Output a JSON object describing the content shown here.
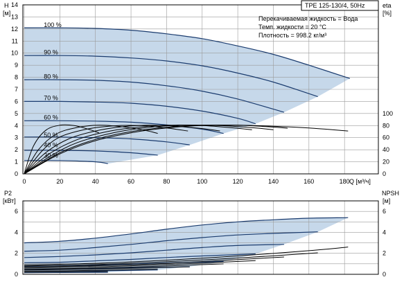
{
  "header": {
    "title": "TPE 125-130/4, 50Hz",
    "fluid_line": "Перекачиваемая жидкость = Вода",
    "temp_line": "Темп. жидкости = 20 °C",
    "density_line": "Плотность = 998.2 кг/м³"
  },
  "colors": {
    "curve": "#1a3b6e",
    "fill": "#c6d8ea",
    "grid": "#9a9a9a",
    "black_curve": "#000000"
  },
  "chart_data": [
    {
      "type": "line",
      "panel": "head",
      "ylabel_top": "H",
      "ylabel_unit": "[м]",
      "right_label_top": "eta",
      "right_label_unit": "[%]",
      "xlabel": "Q [м³/ч]",
      "xlim": [
        0,
        185
      ],
      "ylim": [
        0,
        14
      ],
      "eta_lim": [
        0,
        100
      ],
      "x_ticks": [
        0,
        20,
        40,
        60,
        80,
        100,
        120,
        140,
        160,
        180
      ],
      "y_ticks": [
        0,
        1,
        2,
        3,
        4,
        5,
        6,
        7,
        8,
        9,
        10,
        11,
        12,
        13,
        14
      ],
      "eta_ticks": [
        0,
        20,
        40,
        60,
        80,
        100
      ],
      "grid": true,
      "speed_labels": [
        "100 %",
        "90 %",
        "80 %",
        "70 %",
        "60 %",
        "50 %",
        "40 %",
        "30 %"
      ],
      "speed_label_positions": [
        {
          "x": 11,
          "y": 12.15
        },
        {
          "x": 11,
          "y": 9.9
        },
        {
          "x": 11,
          "y": 7.9
        },
        {
          "x": 11,
          "y": 6.1
        },
        {
          "x": 11,
          "y": 4.5
        },
        {
          "x": 11,
          "y": 3.05
        },
        {
          "x": 11,
          "y": 2.2
        },
        {
          "x": 11,
          "y": 1.35
        }
      ],
      "qh_series": [
        {
          "name": "100 %",
          "x": [
            0,
            20,
            40,
            60,
            80,
            100,
            120,
            140,
            160,
            183
          ],
          "y": [
            12.1,
            12.1,
            12.05,
            11.9,
            11.6,
            11.2,
            10.6,
            9.9,
            9.0,
            7.9
          ]
        },
        {
          "name": "90 %",
          "x": [
            0,
            20,
            40,
            60,
            80,
            100,
            120,
            140,
            165
          ],
          "y": [
            9.8,
            9.8,
            9.75,
            9.6,
            9.35,
            8.95,
            8.35,
            7.6,
            6.4
          ]
        },
        {
          "name": "80 %",
          "x": [
            0,
            20,
            40,
            60,
            80,
            100,
            120,
            146
          ],
          "y": [
            7.8,
            7.8,
            7.75,
            7.6,
            7.3,
            6.85,
            6.2,
            5.1
          ]
        },
        {
          "name": "70 %",
          "x": [
            0,
            20,
            40,
            60,
            80,
            100,
            120,
            130
          ],
          "y": [
            6.0,
            6.0,
            5.95,
            5.85,
            5.6,
            5.2,
            4.6,
            4.15
          ]
        },
        {
          "name": "60 %",
          "x": [
            0,
            20,
            40,
            60,
            80,
            100,
            112
          ],
          "y": [
            4.4,
            4.4,
            4.37,
            4.28,
            4.05,
            3.7,
            3.35
          ]
        },
        {
          "name": "50 %",
          "x": [
            0,
            20,
            40,
            60,
            80,
            93
          ],
          "y": [
            3.05,
            3.05,
            3.0,
            2.9,
            2.65,
            2.4
          ]
        },
        {
          "name": "40 %",
          "x": [
            0,
            20,
            40,
            60,
            75
          ],
          "y": [
            1.95,
            1.95,
            1.9,
            1.75,
            1.55
          ]
        },
        {
          "name": "30 %",
          "x": [
            0,
            20,
            40,
            47
          ],
          "y": [
            1.1,
            1.1,
            1.0,
            0.85
          ]
        }
      ],
      "eta_series": [
        {
          "name": "100 %",
          "x": [
            0,
            20,
            40,
            60,
            80,
            100,
            120,
            140,
            160,
            182
          ],
          "y": [
            0,
            33,
            55,
            68,
            76,
            80,
            80.5,
            79,
            76,
            71
          ]
        },
        {
          "name": "90 %",
          "x": [
            0,
            20,
            40,
            60,
            80,
            100,
            120,
            140,
            148
          ],
          "y": [
            0,
            35,
            57,
            70,
            77,
            80.5,
            80.5,
            77.5,
            75.5
          ]
        },
        {
          "name": "80 %",
          "x": [
            0,
            15,
            30,
            50,
            70,
            90,
            110,
            130,
            140
          ],
          "y": [
            0,
            30,
            52,
            68,
            77,
            80.5,
            80,
            76,
            73
          ]
        },
        {
          "name": "70 %",
          "x": [
            0,
            15,
            30,
            45,
            60,
            80,
            100,
            120,
            128
          ],
          "y": [
            0,
            35,
            57,
            69,
            76,
            80.5,
            80,
            75.5,
            73
          ]
        },
        {
          "name": "60 %",
          "x": [
            0,
            12,
            25,
            40,
            55,
            70,
            85,
            100,
            110
          ],
          "y": [
            0,
            35,
            58,
            71,
            78,
            80.5,
            79,
            75,
            71
          ]
        },
        {
          "name": "50 %",
          "x": [
            0,
            10,
            20,
            35,
            50,
            65,
            80,
            92
          ],
          "y": [
            0,
            38,
            61,
            74,
            79.5,
            80,
            76,
            71
          ]
        },
        {
          "name": "40 %",
          "x": [
            0,
            8,
            18,
            30,
            42,
            55,
            68,
            75
          ],
          "y": [
            0,
            40,
            66,
            77,
            80.5,
            78,
            72,
            67
          ]
        },
        {
          "name": "30 %",
          "x": [
            0,
            5,
            12,
            20,
            28,
            36,
            42
          ],
          "y": [
            0,
            45,
            72,
            80.5,
            80,
            74,
            68
          ]
        }
      ]
    },
    {
      "type": "line",
      "panel": "power",
      "ylabel_top": "P2",
      "ylabel_unit": "[кВт]",
      "right_label_top": "NPSH",
      "right_label_unit": "[м]",
      "xlim": [
        0,
        185
      ],
      "ylim": [
        0,
        7
      ],
      "y_ticks": [
        0,
        2,
        4,
        6
      ],
      "npsh_ticks": [
        0,
        2,
        4,
        6
      ],
      "grid": true,
      "p2_series": [
        {
          "name": "100 %",
          "x": [
            0,
            20,
            40,
            60,
            80,
            100,
            120,
            140,
            160,
            182
          ],
          "y": [
            3.0,
            3.15,
            3.45,
            3.85,
            4.3,
            4.7,
            5.0,
            5.2,
            5.35,
            5.4
          ]
        },
        {
          "name": "90 %",
          "x": [
            0,
            20,
            40,
            60,
            80,
            100,
            120,
            140,
            165
          ],
          "y": [
            2.2,
            2.3,
            2.55,
            2.85,
            3.2,
            3.5,
            3.75,
            3.9,
            4.05
          ]
        },
        {
          "name": "80 %",
          "x": [
            0,
            20,
            40,
            60,
            80,
            100,
            120,
            146
          ],
          "y": [
            1.6,
            1.7,
            1.85,
            2.05,
            2.3,
            2.55,
            2.75,
            2.85
          ]
        },
        {
          "name": "70 %",
          "x": [
            0,
            20,
            40,
            60,
            80,
            100,
            130
          ],
          "y": [
            1.1,
            1.15,
            1.28,
            1.42,
            1.6,
            1.75,
            1.95
          ]
        },
        {
          "name": "60 %",
          "x": [
            0,
            20,
            40,
            60,
            80,
            112
          ],
          "y": [
            0.75,
            0.78,
            0.86,
            0.96,
            1.08,
            1.22
          ]
        },
        {
          "name": "50 %",
          "x": [
            0,
            20,
            40,
            60,
            93
          ],
          "y": [
            0.48,
            0.5,
            0.55,
            0.62,
            0.72
          ]
        },
        {
          "name": "40 %",
          "x": [
            0,
            20,
            40,
            75
          ],
          "y": [
            0.3,
            0.31,
            0.34,
            0.41
          ]
        },
        {
          "name": "30 %",
          "x": [
            0,
            20,
            47
          ],
          "y": [
            0.16,
            0.17,
            0.19
          ]
        }
      ],
      "npsh_series": [
        {
          "name": "100 %",
          "x": [
            0,
            40,
            80,
            120,
            160,
            182
          ],
          "y": [
            0.9,
            1.05,
            1.35,
            1.75,
            2.25,
            2.6
          ]
        },
        {
          "name": "90 %",
          "x": [
            0,
            40,
            80,
            120,
            165
          ],
          "y": [
            0.8,
            0.93,
            1.2,
            1.55,
            2.05
          ]
        },
        {
          "name": "80 %",
          "x": [
            0,
            40,
            80,
            120,
            146
          ],
          "y": [
            0.7,
            0.82,
            1.05,
            1.4,
            1.65
          ]
        },
        {
          "name": "70 %",
          "x": [
            0,
            40,
            80,
            130
          ],
          "y": [
            0.6,
            0.72,
            0.93,
            1.3
          ]
        },
        {
          "name": "60 %",
          "x": [
            0,
            40,
            80,
            112
          ],
          "y": [
            0.5,
            0.6,
            0.8,
            1.0
          ]
        },
        {
          "name": "50 %",
          "x": [
            0,
            40,
            93
          ],
          "y": [
            0.4,
            0.5,
            0.72
          ]
        },
        {
          "name": "40 %",
          "x": [
            0,
            40,
            75
          ],
          "y": [
            0.3,
            0.38,
            0.5
          ]
        },
        {
          "name": "30 %",
          "x": [
            0,
            47
          ],
          "y": [
            0.2,
            0.27
          ]
        }
      ]
    }
  ]
}
